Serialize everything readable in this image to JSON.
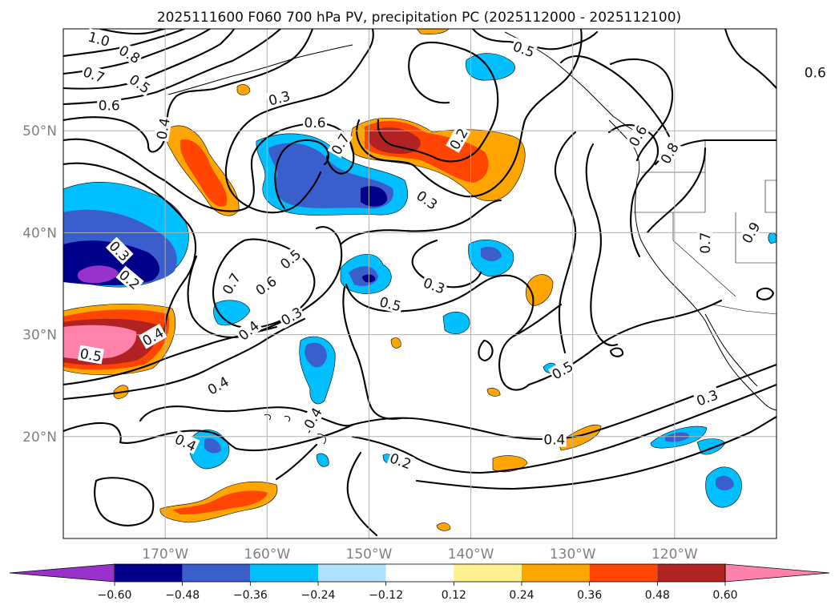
{
  "chart_data": {
    "type": "map",
    "title": "2025111600 F060 700 hPa PV, precipitation PC (2025112000 - 2025112100)",
    "map": {
      "lon_range": [
        -180,
        -110
      ],
      "lat_range": [
        10,
        60
      ],
      "grid": true,
      "lon_ticks": [
        {
          "value": -170,
          "label": "170°W"
        },
        {
          "value": -160,
          "label": "160°W"
        },
        {
          "value": -150,
          "label": "150°W"
        },
        {
          "value": -140,
          "label": "140°W"
        },
        {
          "value": -130,
          "label": "130°W"
        },
        {
          "value": -120,
          "label": "120°W"
        }
      ],
      "lat_ticks": [
        {
          "value": 20,
          "label": "20°N"
        },
        {
          "value": 30,
          "label": "30°N"
        },
        {
          "value": 40,
          "label": "40°N"
        },
        {
          "value": 50,
          "label": "50°N"
        }
      ]
    },
    "colorbar": {
      "levels": [
        "-0.60",
        "-0.48",
        "-0.36",
        "-0.24",
        "-0.12",
        "0.12",
        "0.24",
        "0.36",
        "0.48",
        "0.60"
      ],
      "colors": [
        "#9932cc",
        "#00008b",
        "#3a5fcd",
        "#00bfff",
        "#b0e2ff",
        "#ffffff",
        "#fff08f",
        "#ffa500",
        "#ff4500",
        "#b22222",
        "#ff82ab"
      ],
      "extend": "both"
    },
    "pv_contour_labels": [
      {
        "text": "1.0",
        "lon": -176.5,
        "lat": 59.0,
        "rot": -15
      },
      {
        "text": "0.8",
        "lon": -173.5,
        "lat": 57.5,
        "rot": -30
      },
      {
        "text": "0.7",
        "lon": -177.0,
        "lat": 55.5,
        "rot": -20
      },
      {
        "text": "0.5",
        "lon": -172.5,
        "lat": 54.6,
        "rot": -35
      },
      {
        "text": "0.6",
        "lon": -175.5,
        "lat": 52.5,
        "rot": 0
      },
      {
        "text": "0.3",
        "lon": -158.8,
        "lat": 53.2,
        "rot": 15
      },
      {
        "text": "0.5",
        "lon": -134.8,
        "lat": 58.0,
        "rot": -20
      },
      {
        "text": "0.6",
        "lon": -106.2,
        "lat": 55.7,
        "rot": 0
      },
      {
        "text": "0.4",
        "lon": -170.2,
        "lat": 50.2,
        "rot": 80
      },
      {
        "text": "0.6",
        "lon": -155.3,
        "lat": 50.8,
        "rot": 0
      },
      {
        "text": "0.7",
        "lon": -152.8,
        "lat": 48.7,
        "rot": 60
      },
      {
        "text": "0.2",
        "lon": -141.2,
        "lat": 49.2,
        "rot": 60
      },
      {
        "text": "0.3",
        "lon": -144.3,
        "lat": 43.2,
        "rot": -35
      },
      {
        "text": "0.6",
        "lon": -123.6,
        "lat": 49.5,
        "rot": 60
      },
      {
        "text": "0.8",
        "lon": -120.5,
        "lat": 47.8,
        "rot": 60
      },
      {
        "text": "0.7",
        "lon": -117.0,
        "lat": 39.0,
        "rot": 90
      },
      {
        "text": "0.9",
        "lon": -112.5,
        "lat": 40.0,
        "rot": 60
      },
      {
        "text": "0.3",
        "lon": -174.5,
        "lat": 38.2,
        "rot": -45
      },
      {
        "text": "0.2",
        "lon": -173.5,
        "lat": 35.4,
        "rot": -40
      },
      {
        "text": "0.5",
        "lon": -157.7,
        "lat": 37.4,
        "rot": 40
      },
      {
        "text": "0.7",
        "lon": -163.5,
        "lat": 35.0,
        "rot": 60
      },
      {
        "text": "0.6",
        "lon": -160.1,
        "lat": 34.8,
        "rot": 35
      },
      {
        "text": "0.3",
        "lon": -143.6,
        "lat": 34.8,
        "rot": -20
      },
      {
        "text": "0.3",
        "lon": -157.6,
        "lat": 31.8,
        "rot": 30
      },
      {
        "text": "0.4",
        "lon": -161.8,
        "lat": 30.4,
        "rot": 40
      },
      {
        "text": "0.5",
        "lon": -147.9,
        "lat": 33.0,
        "rot": -15
      },
      {
        "text": "0.4",
        "lon": -171.2,
        "lat": 29.8,
        "rot": 30
      },
      {
        "text": "0.5",
        "lon": -177.3,
        "lat": 28.0,
        "rot": -10
      },
      {
        "text": "0.4",
        "lon": -164.8,
        "lat": 25.0,
        "rot": 30
      },
      {
        "text": "0.5",
        "lon": -131.0,
        "lat": 26.5,
        "rot": 30
      },
      {
        "text": "0.4",
        "lon": -155.5,
        "lat": 21.8,
        "rot": 60
      },
      {
        "text": "0.4",
        "lon": -168.0,
        "lat": 19.4,
        "rot": -25
      },
      {
        "text": "0.4",
        "lon": -131.8,
        "lat": 19.7,
        "rot": 0
      },
      {
        "text": "0.2",
        "lon": -146.9,
        "lat": 17.6,
        "rot": -20
      },
      {
        "text": "0.3",
        "lon": -116.8,
        "lat": 23.8,
        "rot": 20
      }
    ],
    "precip_pc_regions": [
      {
        "region": "central North Pacific 35N 180W",
        "lon": -175.5,
        "lat": 37.2,
        "rx": 5.5,
        "ry": 2.8,
        "levels": [
          "-0.36",
          "-0.48",
          "-0.60"
        ]
      },
      {
        "region": "west Pacific 30N 180W",
        "lon": -175.0,
        "lat": 30.8,
        "rx": 5.5,
        "ry": 2.7,
        "levels": [
          "0.36",
          "0.48",
          "0.60"
        ]
      },
      {
        "region": "north of Hawaii 45N 153W",
        "lon": -153.0,
        "lat": 45.0,
        "rx": 6.5,
        "ry": 2.3,
        "levels": [
          "-0.24",
          "-0.36",
          "-0.48"
        ]
      },
      {
        "region": "Gulf of Alaska 48N 145W",
        "lon": -145.0,
        "lat": 48.4,
        "rx": 6.0,
        "ry": 2.2,
        "levels": [
          "0.24",
          "0.36",
          "0.48"
        ]
      },
      {
        "region": "south of Aleutians 46N 166W",
        "lon": -166.2,
        "lat": 46.2,
        "rx": 2.2,
        "ry": 3.2,
        "levels": [
          "0.24",
          "0.36"
        ]
      },
      {
        "region": "subtropics 35N 149W",
        "lon": -149.3,
        "lat": 35.8,
        "rx": 2.2,
        "ry": 1.6,
        "levels": [
          "-0.24",
          "-0.36",
          "-0.48"
        ]
      },
      {
        "region": "near Hawaii 27N 155W",
        "lon": -155.5,
        "lat": 27.5,
        "rx": 1.5,
        "ry": 3.2,
        "levels": [
          "-0.24",
          "-0.36"
        ]
      },
      {
        "region": "south of Hawaii 14N 164W",
        "lon": -164.2,
        "lat": 14.5,
        "rx": 5.5,
        "ry": 1.3,
        "levels": [
          "0.24",
          "0.36"
        ]
      },
      {
        "region": "east Pacific 18N 119W",
        "lon": -117.0,
        "lat": 15.8,
        "rx": 1.7,
        "ry": 1.8,
        "levels": [
          "-0.24",
          "-0.36"
        ]
      }
    ]
  }
}
